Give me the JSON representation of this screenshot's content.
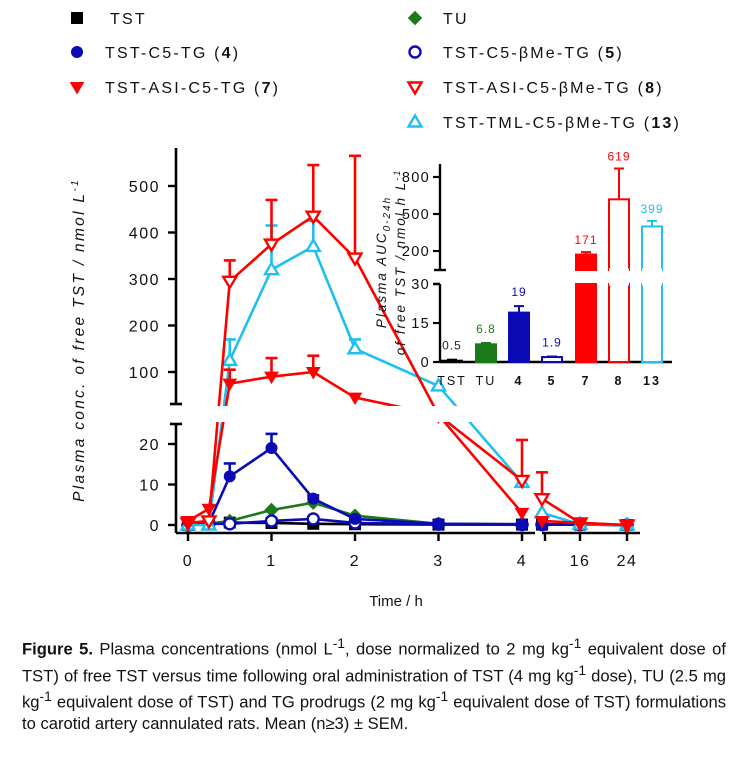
{
  "chart_data": [
    {
      "type": "line",
      "title": "",
      "xlabel": "Time / h",
      "ylabel": "Plasma conc. of free TST / nmol L^-1",
      "axis_break_y": {
        "lower_range": [
          0,
          25
        ],
        "upper_range": [
          40,
          560
        ]
      },
      "axis_break_x": {
        "first_segment": [
          0,
          4
        ],
        "second_segment": [
          8,
          24
        ]
      },
      "x_ticks": [
        "0",
        "1",
        "2",
        "3",
        "4",
        "16",
        "24"
      ],
      "y_ticks_lower": [
        "0",
        "10",
        "20"
      ],
      "y_ticks_upper": [
        "100",
        "200",
        "300",
        "400",
        "500"
      ],
      "legend_placement": "top",
      "series": [
        {
          "name": "TST",
          "color": "#000000",
          "marker": "square-filled",
          "x": [
            0,
            0.25,
            0.5,
            1,
            1.5,
            2,
            3,
            4,
            8,
            16,
            24
          ],
          "y": [
            0,
            0.5,
            0.6,
            0.5,
            0.3,
            0.2,
            0.1,
            0.1,
            0.1,
            0.1,
            0
          ],
          "err": [
            0,
            0,
            0,
            0,
            0,
            0,
            0,
            0,
            0,
            0,
            0
          ]
        },
        {
          "name": "TU",
          "color": "#1a7a1a",
          "marker": "diamond-filled",
          "x": [
            0,
            0.25,
            0.5,
            1,
            1.5,
            2,
            3,
            4,
            8,
            16,
            24
          ],
          "y": [
            0,
            0.3,
            1.0,
            3.7,
            5.5,
            2.3,
            0.3,
            0.2,
            0.1,
            0.1,
            0
          ],
          "err": [
            0,
            0,
            0,
            0,
            0,
            0,
            0,
            0,
            0,
            0,
            0
          ]
        },
        {
          "name": "TST-C5-TG (4)",
          "color": "#0b0bb5",
          "marker": "circle-filled",
          "x": [
            0,
            0.25,
            0.5,
            1,
            1.5,
            2,
            3,
            4,
            8,
            16,
            24
          ],
          "y": [
            0,
            0.5,
            12,
            19,
            6.5,
            1.5,
            0.3,
            0.2,
            0.2,
            0.1,
            0
          ],
          "err": [
            0,
            0,
            3.2,
            3.5,
            0.8,
            0.4,
            0,
            0,
            0,
            0,
            0
          ]
        },
        {
          "name": "TST-C5-βMe-TG (5)",
          "color": "#0b0bb5",
          "marker": "circle-open",
          "x": [
            0,
            0.25,
            0.5,
            1,
            1.5,
            2,
            3,
            4,
            8,
            16,
            24
          ],
          "y": [
            0,
            0.3,
            0.3,
            1.0,
            1.5,
            0.5,
            0.2,
            0.1,
            0.1,
            0.1,
            0
          ],
          "err": [
            0,
            0,
            0,
            0,
            0,
            0,
            0,
            0,
            0,
            0,
            0
          ]
        },
        {
          "name": "TST-ASI-C5-TG (7)",
          "color": "#ff0000",
          "marker": "triangle-down-filled",
          "x": [
            0,
            0.25,
            0.5,
            1,
            1.5,
            2,
            3,
            4,
            8,
            16,
            24
          ],
          "y": [
            1,
            4,
            75,
            90,
            100,
            45,
            35,
            3,
            1,
            0.5,
            0
          ],
          "err": [
            0,
            0,
            30,
            40,
            35,
            0,
            0,
            0,
            0,
            0,
            0
          ]
        },
        {
          "name": "TST-ASI-C5-βMe-TG (8)",
          "color": "#ff0000",
          "marker": "triangle-down-open",
          "x": [
            0,
            0.25,
            0.5,
            1,
            1.5,
            2,
            3,
            4,
            8,
            16,
            24
          ],
          "y": [
            0.5,
            1,
            295,
            375,
            435,
            345,
            30,
            11,
            6.5,
            0.5,
            0
          ],
          "err": [
            0,
            0,
            45,
            95,
            110,
            220,
            0,
            10,
            6.5,
            0,
            0
          ]
        },
        {
          "name": "TST-TML-C5-βMe-TG (13)",
          "color": "#1ec0f0",
          "marker": "triangle-up-open",
          "x": [
            0,
            0.25,
            0.5,
            1,
            1.5,
            2,
            3,
            4,
            8,
            16,
            24
          ],
          "y": [
            0,
            0,
            125,
            320,
            370,
            150,
            70,
            10.5,
            3,
            0.2,
            0
          ],
          "err": [
            0,
            0,
            45,
            95,
            55,
            20,
            0,
            1.2,
            0,
            0,
            0
          ]
        }
      ]
    },
    {
      "type": "bar",
      "title": "",
      "ylabel": "Plasma AUC 0-24h of free TST / nmol h L^-1",
      "axis_break_y": {
        "lower_range": [
          0,
          30
        ],
        "upper_range": [
          50,
          900
        ]
      },
      "y_ticks_lower": [
        "0",
        "15",
        "30"
      ],
      "y_ticks_upper": [
        "200",
        "500",
        "800"
      ],
      "categories": [
        "TST",
        "TU",
        "4",
        "5",
        "7",
        "8",
        "13"
      ],
      "values": [
        0.5,
        6.8,
        19,
        1.9,
        171,
        619,
        399
      ],
      "errors": [
        0.4,
        0.5,
        2.5,
        0.2,
        20,
        250,
        45
      ],
      "data_labels": [
        "0.5",
        "6.8",
        "19",
        "1.9",
        "171",
        "619",
        "399"
      ],
      "colors": [
        "#000000",
        "#1a7a1a",
        "#0b0bb5",
        "#0b0bb5",
        "#ff0000",
        "#ff0000",
        "#1ec0f0"
      ],
      "filled": [
        true,
        true,
        true,
        false,
        true,
        false,
        false
      ]
    }
  ],
  "legend": {
    "items": [
      {
        "label": "TST",
        "bold_suffix": ""
      },
      {
        "label": "TU",
        "bold_suffix": ""
      },
      {
        "label": "TST-C5-TG (",
        "bold_suffix": "4"
      },
      {
        "label": "TST-C5-βMe-TG (",
        "bold_suffix": "5"
      },
      {
        "label": "TST-ASI-C5-TG (",
        "bold_suffix": "7"
      },
      {
        "label": "TST-ASI-C5-βMe-TG (",
        "bold_suffix": "8"
      },
      {
        "label": "TST-TML-C5-βMe-TG (",
        "bold_suffix": "13"
      }
    ]
  },
  "caption": {
    "figure_label": "Figure 5.",
    "text_1": " Plasma concentrations (nmol L",
    "sup_1": "-1",
    "text_2": ", dose normalized to 2 mg kg",
    "sup_2": "-1",
    "text_3": " equivalent dose of TST) of free TST versus time following oral administration of TST (4 mg kg",
    "sup_3": "-1",
    "text_4": " dose), TU (2.5 mg kg",
    "sup_4": "-1",
    "text_5": " equivalent dose of TST) and TG prodrugs (2 mg kg",
    "sup_5": "-1",
    "text_6": " equivalent dose of TST) formulations to carotid artery cannulated rats. Mean (n≥3) ± SEM."
  }
}
